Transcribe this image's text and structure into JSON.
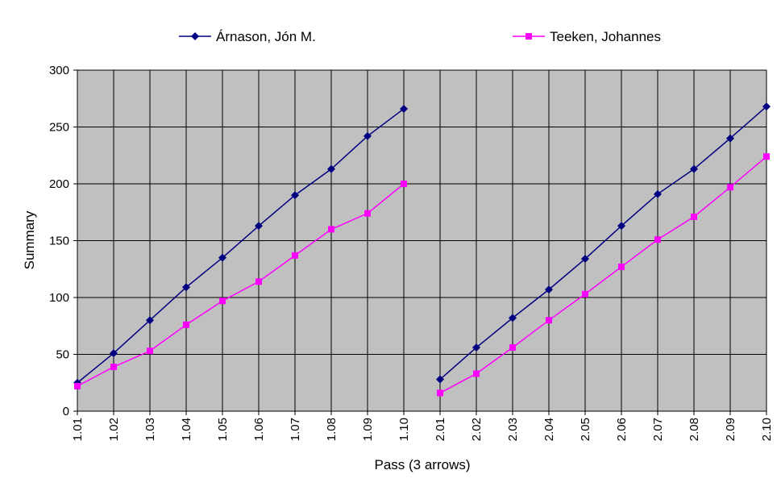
{
  "chart_data": {
    "type": "line",
    "title": "",
    "xlabel": "Pass (3 arrows)",
    "ylabel": "Summary",
    "ylim": [
      0,
      300
    ],
    "yticks": [
      0,
      50,
      100,
      150,
      200,
      250,
      300
    ],
    "grid": true,
    "plot_background": "#c0c0c0",
    "legend_placement": "top",
    "categories": [
      "1.01",
      "1.02",
      "1.03",
      "1.04",
      "1.05",
      "1.06",
      "1.07",
      "1.08",
      "1.09",
      "1.10",
      "2.01",
      "2.02",
      "2.03",
      "2.04",
      "2.05",
      "2.06",
      "2.07",
      "2.08",
      "2.09",
      "2.10"
    ],
    "series": [
      {
        "name": "Árnason, Jón M.",
        "color": "#000080",
        "marker": "diamond",
        "values": [
          25,
          51,
          80,
          109,
          135,
          163,
          190,
          213,
          242,
          266,
          28,
          56,
          82,
          107,
          134,
          163,
          191,
          213,
          240,
          268
        ]
      },
      {
        "name": "Teeken, Johannes",
        "color": "#ff00ff",
        "marker": "square",
        "values": [
          22,
          39,
          53,
          76,
          97,
          114,
          137,
          160,
          174,
          200,
          16,
          33,
          56,
          80,
          103,
          127,
          151,
          171,
          197,
          224
        ]
      }
    ],
    "segments": [
      [
        0,
        9
      ],
      [
        10,
        19
      ]
    ]
  }
}
